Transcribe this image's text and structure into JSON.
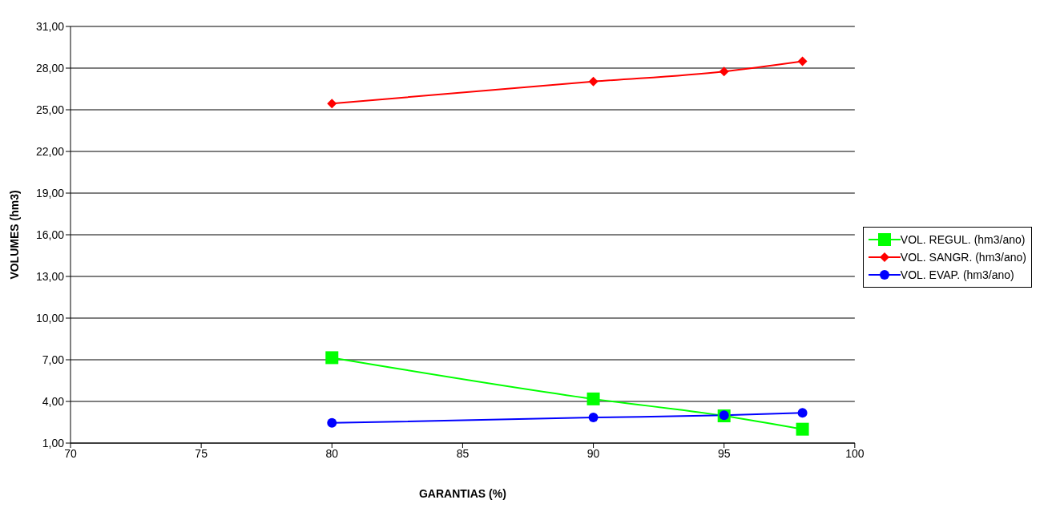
{
  "chart_data": {
    "type": "line",
    "xlabel": "GARANTIAS (%)",
    "ylabel": "VOLUMES (hm3)",
    "x": [
      80,
      90,
      95,
      98
    ],
    "series": [
      {
        "name": "VOL. REGUL. (hm3/ano)",
        "color": "#00ff00",
        "marker": "square",
        "values": [
          7.15,
          4.18,
          2.96,
          2.0
        ]
      },
      {
        "name": "VOL. SANGR. (hm3/ano)",
        "color": "#ff0000",
        "marker": "diamond",
        "values": [
          25.45,
          27.03,
          27.76,
          28.49
        ]
      },
      {
        "name": "VOL. EVAP. (hm3/ano)",
        "color": "#0000ff",
        "marker": "circle",
        "values": [
          2.45,
          2.84,
          3.0,
          3.18
        ]
      }
    ],
    "xlim": [
      70,
      100
    ],
    "xticks": [
      70,
      75,
      80,
      85,
      90,
      95,
      100
    ],
    "ylim": [
      1,
      31
    ],
    "yticks": [
      {
        "value": 1,
        "label": "1,00"
      },
      {
        "value": 4,
        "label": "4,00"
      },
      {
        "value": 7,
        "label": "7,00"
      },
      {
        "value": 10,
        "label": "10,00"
      },
      {
        "value": 13,
        "label": "13,00"
      },
      {
        "value": 16,
        "label": "16,00"
      },
      {
        "value": 19,
        "label": "19,00"
      },
      {
        "value": 22,
        "label": "22,00"
      },
      {
        "value": 25,
        "label": "25,00"
      },
      {
        "value": 28,
        "label": "28,00"
      },
      {
        "value": 31,
        "label": "31,00"
      }
    ],
    "grid": "y",
    "legend": "right"
  }
}
